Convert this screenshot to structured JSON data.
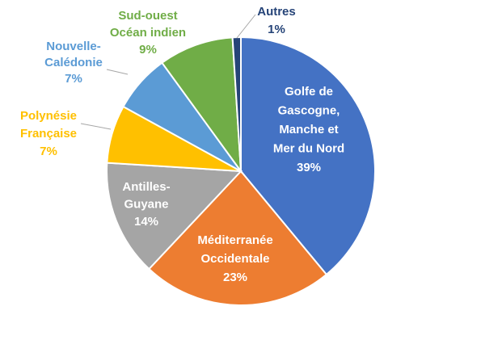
{
  "chart_data": {
    "type": "pie",
    "slices": [
      {
        "label": [
          "Golfe de",
          "Gascogne,",
          "Manche et",
          "Mer du Nord"
        ],
        "pct": "39%",
        "value": 39,
        "color": "#4472C4",
        "label_color": "#FFFFFF"
      },
      {
        "label": [
          "Méditerranée",
          "Occidentale"
        ],
        "pct": "23%",
        "value": 23,
        "color": "#ED7D31",
        "label_color": "#FFFFFF"
      },
      {
        "label": [
          "Antilles-",
          "Guyane"
        ],
        "pct": "14%",
        "value": 14,
        "color": "#A5A5A5",
        "label_color": "#FFFFFF"
      },
      {
        "label": [
          "Polynésie",
          "Française"
        ],
        "pct": "7%",
        "value": 7,
        "color": "#FFC000",
        "label_color": "#FFC000"
      },
      {
        "label": [
          "Nouvelle-",
          "Calédonie"
        ],
        "pct": "7%",
        "value": 7,
        "color": "#5B9BD5",
        "label_color": "#5B9BD5"
      },
      {
        "label": [
          "Sud-ouest",
          "Océan indien"
        ],
        "pct": "9%",
        "value": 9,
        "color": "#70AD47",
        "label_color": "#70AD47"
      },
      {
        "label": [
          "Autres"
        ],
        "pct": "1%",
        "value": 1,
        "color": "#264478",
        "label_color": "#264478"
      }
    ]
  }
}
